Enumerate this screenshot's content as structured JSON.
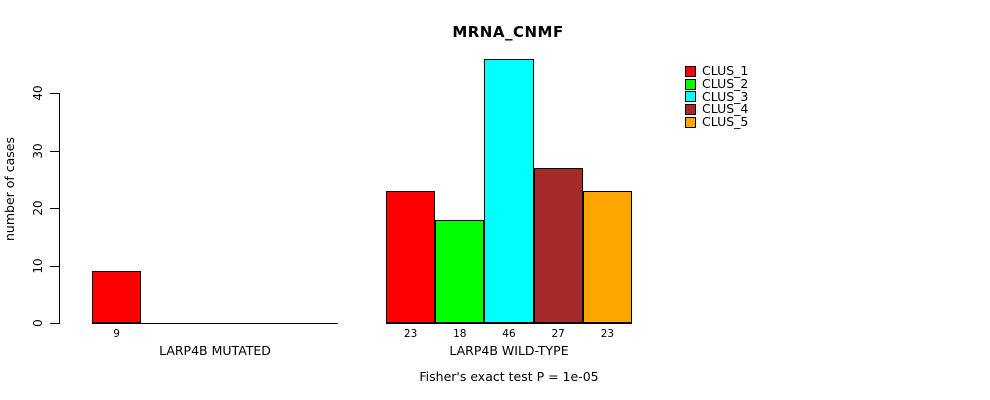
{
  "chart_data": {
    "type": "bar",
    "title": "MRNA_CNMF",
    "ylabel": "number of cases",
    "yticks": [
      0,
      10,
      20,
      30,
      40
    ],
    "ylim": [
      0,
      46
    ],
    "grid": false,
    "legend_position": "top-right",
    "series": [
      "CLUS_1",
      "CLUS_2",
      "CLUS_3",
      "CLUS_4",
      "CLUS_5"
    ],
    "colors": [
      "#FF0000",
      "#00FF00",
      "#00FFFF",
      "#A52A2A",
      "#FFA500"
    ],
    "groups": [
      {
        "label": "LARP4B MUTATED",
        "values": [
          9,
          0,
          0,
          0,
          0
        ]
      },
      {
        "label": "LARP4B WILD-TYPE",
        "values": [
          23,
          18,
          46,
          27,
          23
        ]
      }
    ],
    "caption": "Fisher's exact test P = 1e-05"
  }
}
